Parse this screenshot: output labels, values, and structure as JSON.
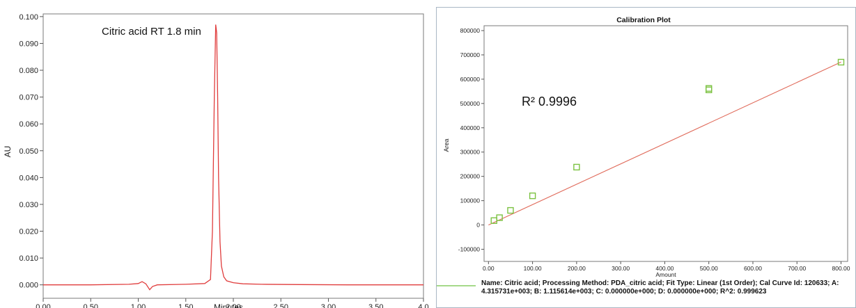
{
  "chart_data": [
    {
      "type": "line",
      "xlabel": "Minutes",
      "ylabel": "AU",
      "xlim": [
        0.0,
        4.0
      ],
      "ylim": [
        -0.005,
        0.101
      ],
      "x_ticks": [
        0.0,
        0.5,
        1.0,
        1.5,
        2.0,
        2.5,
        3.0,
        3.5,
        4.0
      ],
      "x_tick_labels": [
        "0.00",
        "0.50",
        "1.00",
        "1.50",
        "2.00",
        "2.50",
        "3.00",
        "3.50",
        "4.0"
      ],
      "y_ticks": [
        0.0,
        0.01,
        0.02,
        0.03,
        0.04,
        0.05,
        0.06,
        0.07,
        0.08,
        0.09,
        0.1
      ],
      "y_tick_labels": [
        "0.000",
        "0.010",
        "0.020",
        "0.030",
        "0.040",
        "0.050",
        "0.060",
        "0.070",
        "0.080",
        "0.090",
        "0.100"
      ],
      "annotation": "Citric acid RT 1.8 min",
      "line_color": "#e03c3c",
      "series": [
        {
          "x": [
            0.0,
            0.5,
            0.9,
            1.0,
            1.04,
            1.08,
            1.12,
            1.15,
            1.2,
            1.5,
            1.7,
            1.76,
            1.78,
            1.8,
            1.815,
            1.825,
            1.835,
            1.845,
            1.86,
            1.875,
            1.9,
            1.93,
            2.0,
            2.1,
            2.3,
            2.7,
            3.2,
            4.0
          ],
          "y": [
            0.0,
            0.0,
            0.0002,
            0.0005,
            0.0012,
            0.0004,
            -0.0018,
            -0.0006,
            0.0,
            0.0002,
            0.0005,
            0.002,
            0.02,
            0.07,
            0.097,
            0.094,
            0.07,
            0.04,
            0.016,
            0.007,
            0.003,
            0.0015,
            0.0008,
            0.0004,
            0.0002,
            0.0001,
            0.0,
            0.0
          ]
        }
      ]
    },
    {
      "type": "scatter",
      "title": "Calibration Plot",
      "xlabel": "Amount",
      "ylabel": "Area",
      "xlim": [
        -10,
        815
      ],
      "ylim": [
        -150000,
        820000
      ],
      "x_ticks": [
        0,
        100,
        200,
        300,
        400,
        500,
        600,
        700,
        800
      ],
      "x_tick_labels": [
        "0.00",
        "100.00",
        "200.00",
        "300.00",
        "400.00",
        "500.00",
        "600.00",
        "700.00",
        "800.00"
      ],
      "y_ticks": [
        -100000,
        0,
        100000,
        200000,
        300000,
        400000,
        500000,
        600000,
        700000,
        800000
      ],
      "y_tick_labels": [
        "-100000",
        "0",
        "100000",
        "200000",
        "300000",
        "400000",
        "500000",
        "600000",
        "700000",
        "800000"
      ],
      "annotation": "R² 0.9996",
      "point_color": "#7cc242",
      "fit_color": "#e06a5a",
      "fit": {
        "slope": 838.0,
        "intercept": 0
      },
      "points": {
        "x": [
          12.5,
          25,
          50,
          100,
          200,
          500,
          500,
          800
        ],
        "y": [
          18000,
          30000,
          60000,
          120000,
          238000,
          556000,
          562000,
          670000
        ]
      },
      "legend": {
        "color": "#a6d98a",
        "text": "Name: Citric acid;   Processing Method: PDA_citric acid;   Fit Type: Linear (1st Order);   Cal Curve Id: 120633;   A: 4.315731e+003;   B: 1.115614e+003;   C: 0.000000e+000;   D: 0.000000e+000;   R^2: 0.999623"
      }
    }
  ]
}
